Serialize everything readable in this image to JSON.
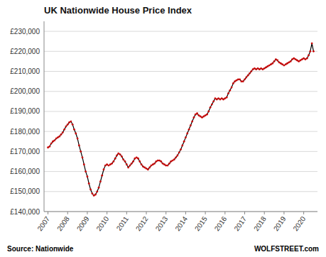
{
  "chart_data": {
    "type": "line",
    "title": "UK Nationwide House Price Index",
    "annotations": [
      "Source: Nationwide",
      "WOLFSTREET.com"
    ],
    "color": "#cc0000",
    "grid": true,
    "xlim": [
      2006.8,
      2020.7
    ],
    "xticks": [
      2007,
      2008,
      2009,
      2010,
      2011,
      2012,
      2013,
      2014,
      2015,
      2016,
      2017,
      2018,
      2019,
      2020
    ],
    "ylim": [
      140000,
      235000
    ],
    "yticks": [
      {
        "value": 140000,
        "label": "£140,000"
      },
      {
        "value": 150000,
        "label": "£150,000"
      },
      {
        "value": 160000,
        "label": "£160,000"
      },
      {
        "value": 170000,
        "label": "£170,000"
      },
      {
        "value": 180000,
        "label": "£180,000"
      },
      {
        "value": 190000,
        "label": "£190,000"
      },
      {
        "value": 200000,
        "label": "£200,000"
      },
      {
        "value": 210000,
        "label": "£210,000"
      },
      {
        "value": 220000,
        "label": "£220,000"
      },
      {
        "value": 230000,
        "label": "£230,000"
      }
    ],
    "x": [
      2007.0,
      2007.083,
      2007.167,
      2007.25,
      2007.333,
      2007.417,
      2007.5,
      2007.583,
      2007.667,
      2007.75,
      2007.833,
      2007.917,
      2008.0,
      2008.083,
      2008.167,
      2008.25,
      2008.333,
      2008.417,
      2008.5,
      2008.583,
      2008.667,
      2008.75,
      2008.833,
      2008.917,
      2009.0,
      2009.083,
      2009.167,
      2009.25,
      2009.333,
      2009.417,
      2009.5,
      2009.583,
      2009.667,
      2009.75,
      2009.833,
      2009.917,
      2010.0,
      2010.083,
      2010.167,
      2010.25,
      2010.333,
      2010.417,
      2010.5,
      2010.583,
      2010.667,
      2010.75,
      2010.833,
      2010.917,
      2011.0,
      2011.083,
      2011.167,
      2011.25,
      2011.333,
      2011.417,
      2011.5,
      2011.583,
      2011.667,
      2011.75,
      2011.833,
      2011.917,
      2012.0,
      2012.083,
      2012.167,
      2012.25,
      2012.333,
      2012.417,
      2012.5,
      2012.583,
      2012.667,
      2012.75,
      2012.833,
      2012.917,
      2013.0,
      2013.083,
      2013.167,
      2013.25,
      2013.333,
      2013.417,
      2013.5,
      2013.583,
      2013.667,
      2013.75,
      2013.833,
      2013.917,
      2014.0,
      2014.083,
      2014.167,
      2014.25,
      2014.333,
      2014.417,
      2014.5,
      2014.583,
      2014.667,
      2014.75,
      2014.833,
      2014.917,
      2015.0,
      2015.083,
      2015.167,
      2015.25,
      2015.333,
      2015.417,
      2015.5,
      2015.583,
      2015.667,
      2015.75,
      2015.833,
      2015.917,
      2016.0,
      2016.083,
      2016.167,
      2016.25,
      2016.333,
      2016.417,
      2016.5,
      2016.583,
      2016.667,
      2016.75,
      2016.833,
      2016.917,
      2017.0,
      2017.083,
      2017.167,
      2017.25,
      2017.333,
      2017.417,
      2017.5,
      2017.583,
      2017.667,
      2017.75,
      2017.833,
      2017.917,
      2018.0,
      2018.083,
      2018.167,
      2018.25,
      2018.333,
      2018.417,
      2018.5,
      2018.583,
      2018.667,
      2018.75,
      2018.833,
      2018.917,
      2019.0,
      2019.083,
      2019.167,
      2019.25,
      2019.333,
      2019.417,
      2019.5,
      2019.583,
      2019.667,
      2019.75,
      2019.833,
      2019.917,
      2020.0,
      2020.083,
      2020.167,
      2020.25,
      2020.333,
      2020.417,
      2020.5
    ],
    "series": [
      {
        "color": "#000000",
        "marker": "circle",
        "values": [
          172000,
          172500,
          174000,
          175000,
          175500,
          176500,
          177000,
          177500,
          178500,
          179500,
          181000,
          182500,
          183500,
          184500,
          185000,
          183500,
          181000,
          179000,
          176500,
          173000,
          170000,
          167000,
          163500,
          160000,
          157500,
          154000,
          151000,
          149000,
          148000,
          148500,
          150000,
          152000,
          155000,
          158000,
          161000,
          163000,
          163500,
          163000,
          163500,
          164000,
          165000,
          166500,
          168000,
          169000,
          168500,
          167500,
          166000,
          165000,
          163500,
          162000,
          163000,
          164000,
          165000,
          166500,
          167000,
          166500,
          165000,
          163500,
          162500,
          162000,
          161500,
          161000,
          162000,
          163000,
          163500,
          164000,
          165000,
          165500,
          165500,
          165000,
          164000,
          163500,
          163000,
          163000,
          164000,
          165000,
          165500,
          166000,
          167000,
          168000,
          169500,
          171000,
          173000,
          175000,
          177000,
          179000,
          181000,
          183000,
          185000,
          187000,
          188500,
          189000,
          188000,
          187500,
          187000,
          187500,
          188000,
          188500,
          190000,
          192000,
          193500,
          195000,
          196500,
          196000,
          196500,
          196000,
          196500,
          196000,
          196500,
          197000,
          199000,
          200500,
          202000,
          204000,
          205000,
          205500,
          206000,
          206000,
          205000,
          205000,
          206000,
          207000,
          208000,
          209000,
          210000,
          211000,
          211500,
          211000,
          211500,
          211000,
          211500,
          211000,
          211500,
          212000,
          212500,
          213000,
          213500,
          214000,
          215000,
          216000,
          215500,
          214500,
          214000,
          213500,
          213000,
          213500,
          214000,
          214500,
          215000,
          216000,
          216500,
          216000,
          215500,
          215000,
          215500,
          216000,
          216500,
          216000,
          216500,
          218000,
          220000,
          224000,
          220000
        ]
      }
    ]
  }
}
